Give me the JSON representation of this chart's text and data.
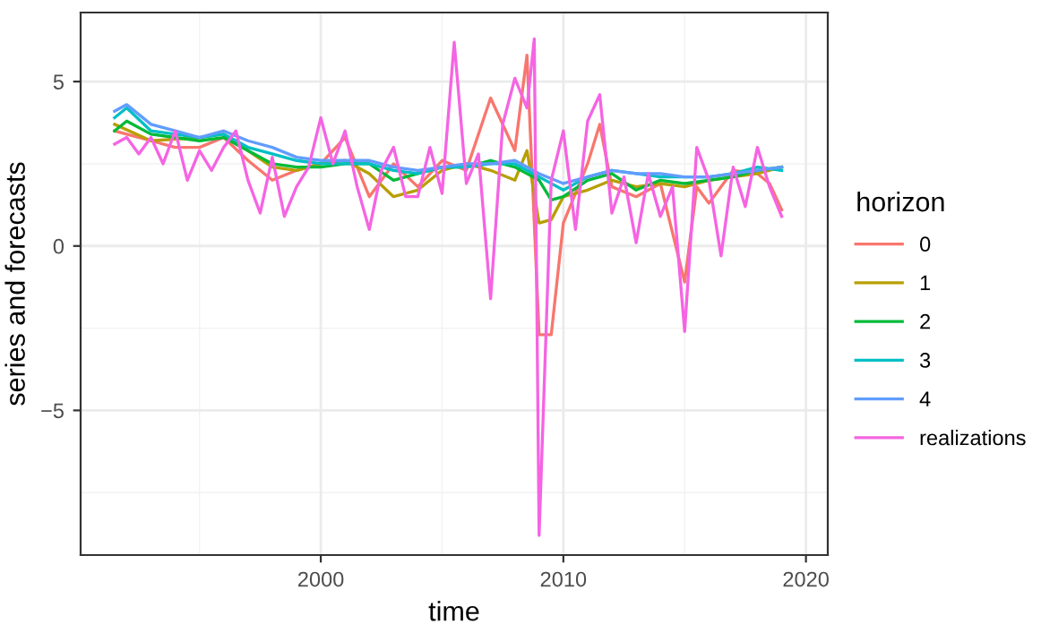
{
  "chart_data": {
    "type": "line",
    "xlabel": "time",
    "ylabel": "series and forecasts",
    "legend_title": "horizon",
    "legend": "right",
    "grid": true,
    "line_style": "solid",
    "xlim": [
      1990.1,
      2020.9
    ],
    "xticks": [
      2000,
      2010,
      2020
    ],
    "ylim": [
      -9.4,
      7.1
    ],
    "yticks": [
      {
        "value": -5,
        "label": "−5"
      },
      0,
      5
    ],
    "series": [
      {
        "name": "0",
        "color": "#f8766d",
        "x": [
          1991.5,
          1993,
          1994,
          1995,
          1996,
          1997,
          1998,
          1999,
          2000,
          2001,
          2002,
          2003,
          2004,
          2005,
          2006,
          2007,
          2008,
          2008.5,
          2009,
          2009.5,
          2010,
          2011,
          2011.5,
          2012,
          2013,
          2014,
          2015,
          2015.5,
          2016,
          2017,
          2018,
          2018.5,
          2019
        ],
        "values": [
          3.5,
          3.2,
          3.0,
          3.0,
          3.3,
          2.6,
          2.0,
          2.3,
          2.5,
          3.3,
          1.5,
          2.5,
          1.8,
          2.6,
          2.3,
          4.5,
          2.9,
          5.8,
          -2.7,
          -2.7,
          0.7,
          2.5,
          3.7,
          1.8,
          1.5,
          1.9,
          -1.1,
          1.8,
          1.3,
          2.3,
          2.2,
          1.9,
          1.1
        ]
      },
      {
        "name": "1",
        "color": "#b79f00",
        "x": [
          1991.5,
          1993,
          1995,
          1996,
          1997,
          1998,
          1999,
          2000,
          2001,
          2002,
          2003,
          2004,
          2005,
          2006,
          2007,
          2008,
          2008.5,
          2009,
          2009.5,
          2010,
          2011,
          2012,
          2013,
          2014,
          2015,
          2016,
          2017,
          2018,
          2019
        ],
        "values": [
          3.7,
          3.2,
          3.3,
          3.4,
          2.9,
          2.4,
          2.3,
          2.5,
          2.6,
          2.2,
          1.5,
          1.7,
          2.3,
          2.5,
          2.3,
          2.0,
          2.9,
          0.7,
          0.8,
          1.5,
          1.7,
          2.0,
          1.8,
          1.9,
          1.8,
          2.0,
          2.1,
          2.2,
          2.4
        ]
      },
      {
        "name": "2",
        "color": "#00ba38",
        "x": [
          1991.5,
          1992,
          1993,
          1995,
          1996,
          1997,
          1998,
          1999,
          2000,
          2001,
          2002,
          2003,
          2004,
          2005,
          2006,
          2007,
          2008,
          2009,
          2009.5,
          2010,
          2011,
          2012,
          2013,
          2014,
          2015,
          2016,
          2017,
          2018,
          2019
        ],
        "values": [
          3.5,
          3.8,
          3.4,
          3.2,
          3.3,
          2.9,
          2.5,
          2.4,
          2.4,
          2.5,
          2.5,
          2.0,
          2.2,
          2.4,
          2.4,
          2.6,
          2.4,
          2.0,
          1.4,
          1.5,
          2.0,
          2.2,
          1.7,
          2.0,
          1.9,
          2.0,
          2.1,
          2.3,
          2.4
        ]
      },
      {
        "name": "3",
        "color": "#00bfc4",
        "x": [
          1991.5,
          1992,
          1993,
          1995,
          1996,
          1997,
          1998,
          1999,
          2000,
          2001,
          2002,
          2003,
          2004,
          2005,
          2006,
          2007,
          2008,
          2009,
          2010,
          2011,
          2012,
          2013,
          2014,
          2015,
          2016,
          2017,
          2018,
          2019
        ],
        "values": [
          3.9,
          4.2,
          3.5,
          3.3,
          3.4,
          3.0,
          2.8,
          2.6,
          2.5,
          2.5,
          2.5,
          2.3,
          2.2,
          2.4,
          2.4,
          2.5,
          2.5,
          2.1,
          1.7,
          2.1,
          2.3,
          2.2,
          2.1,
          2.1,
          2.1,
          2.2,
          2.4,
          2.3
        ]
      },
      {
        "name": "4",
        "color": "#619cff",
        "x": [
          1991.5,
          1992,
          1993,
          1994,
          1995,
          1996,
          1997,
          1998,
          1999,
          2000,
          2001,
          2002,
          2003,
          2004,
          2005,
          2006,
          2007,
          2008,
          2009,
          2010,
          2011,
          2012,
          2013,
          2014,
          2015,
          2016,
          2017,
          2018,
          2019
        ],
        "values": [
          4.1,
          4.3,
          3.7,
          3.5,
          3.3,
          3.5,
          3.2,
          3.0,
          2.7,
          2.6,
          2.6,
          2.6,
          2.4,
          2.3,
          2.4,
          2.5,
          2.5,
          2.6,
          2.2,
          1.9,
          2.1,
          2.3,
          2.2,
          2.2,
          2.1,
          2.1,
          2.2,
          2.3,
          2.4
        ]
      },
      {
        "name": "realizations",
        "color": "#f564e3",
        "x": [
          1991.5,
          1992,
          1992.5,
          1993,
          1993.5,
          1994,
          1994.5,
          1995,
          1995.5,
          1996,
          1996.5,
          1997,
          1997.5,
          1998,
          1998.5,
          1999,
          1999.5,
          2000,
          2000.5,
          2001,
          2001.5,
          2002,
          2002.5,
          2003,
          2003.5,
          2004,
          2004.5,
          2005,
          2005.5,
          2006,
          2006.5,
          2007,
          2007.5,
          2008,
          2008.5,
          2008.8,
          2009,
          2009.5,
          2010,
          2010.5,
          2011,
          2011.5,
          2012,
          2012.5,
          2013,
          2013.5,
          2014,
          2014.5,
          2015,
          2015.5,
          2016,
          2016.5,
          2017,
          2017.5,
          2018,
          2018.5,
          2019
        ],
        "values": [
          3.1,
          3.3,
          2.8,
          3.3,
          2.5,
          3.5,
          2.0,
          2.9,
          2.3,
          3.0,
          3.5,
          2.0,
          1.0,
          2.7,
          0.9,
          1.8,
          2.4,
          3.9,
          2.5,
          3.5,
          1.8,
          0.5,
          2.3,
          3.0,
          1.5,
          1.5,
          3.0,
          1.6,
          6.2,
          1.9,
          2.8,
          -1.6,
          3.7,
          5.1,
          4.2,
          6.3,
          -8.8,
          2.0,
          3.5,
          0.5,
          3.8,
          4.6,
          1.0,
          2.1,
          0.1,
          2.2,
          0.9,
          1.8,
          -2.6,
          3.0,
          2.0,
          -0.3,
          2.4,
          1.2,
          3.0,
          1.8,
          0.9
        ]
      }
    ]
  }
}
